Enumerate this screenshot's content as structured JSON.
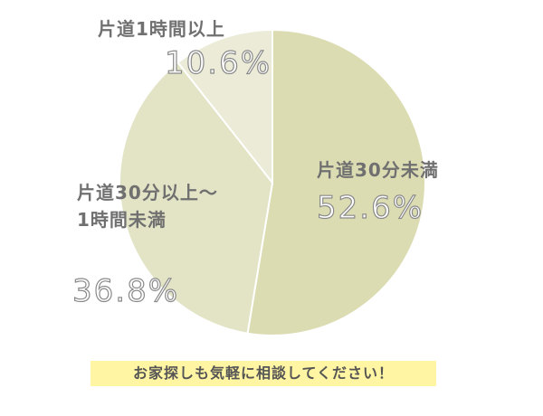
{
  "chart_data": {
    "type": "pie",
    "categories": [
      "片道30分未満",
      "片道30分以上～\n1時間未満",
      "片道1時間以上"
    ],
    "values": [
      52.6,
      36.8,
      10.6
    ],
    "value_labels": [
      "52.6%",
      "36.8%",
      "10.6%"
    ],
    "colors": [
      "#dcdcb3",
      "#e3e3c5",
      "#ebebd7"
    ],
    "start_angle": 0,
    "direction": "clockwise",
    "footer": "お家探しも気軽に相談してください！"
  }
}
